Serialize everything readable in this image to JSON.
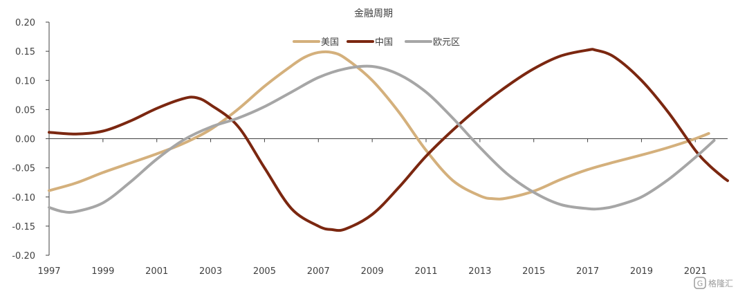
{
  "chart_data": {
    "type": "line",
    "title": "金融周期",
    "xlabel": "",
    "ylabel": "",
    "xlim": [
      1997,
      2022.2
    ],
    "ylim": [
      -0.2,
      0.2
    ],
    "x_ticks": [
      1997,
      1999,
      2001,
      2003,
      2005,
      2007,
      2009,
      2011,
      2013,
      2015,
      2017,
      2019,
      2021
    ],
    "x_tick_labels": [
      "1997",
      "1999",
      "2001",
      "2003",
      "2005",
      "2007",
      "2009",
      "2011",
      "2013",
      "2015",
      "2017",
      "2019",
      "2021"
    ],
    "y_ticks": [
      0.2,
      0.15,
      0.1,
      0.05,
      0.0,
      -0.05,
      -0.1,
      -0.15,
      -0.2
    ],
    "y_tick_labels": [
      "0.20",
      "0.15",
      "0.10",
      "0.05",
      "0.00",
      "-0.05",
      "-0.10",
      "-0.15",
      "-0.20"
    ],
    "grid": false,
    "legend_position": "top-center",
    "series": [
      {
        "name": "美国",
        "color": "#d4b07c",
        "points": [
          [
            1997,
            -0.089
          ],
          [
            1998,
            -0.076
          ],
          [
            1999,
            -0.058
          ],
          [
            2000,
            -0.042
          ],
          [
            2001,
            -0.026
          ],
          [
            2002,
            -0.008
          ],
          [
            2003,
            0.016
          ],
          [
            2004,
            0.05
          ],
          [
            2005,
            0.09
          ],
          [
            2006,
            0.125
          ],
          [
            2006.5,
            0.14
          ],
          [
            2007,
            0.148
          ],
          [
            2007.5,
            0.148
          ],
          [
            2008,
            0.138
          ],
          [
            2009,
            0.1
          ],
          [
            2010,
            0.045
          ],
          [
            2011,
            -0.02
          ],
          [
            2012,
            -0.072
          ],
          [
            2013,
            -0.098
          ],
          [
            2013.5,
            -0.103
          ],
          [
            2014,
            -0.102
          ],
          [
            2015,
            -0.09
          ],
          [
            2016,
            -0.07
          ],
          [
            2017,
            -0.053
          ],
          [
            2018,
            -0.04
          ],
          [
            2019,
            -0.028
          ],
          [
            2020,
            -0.015
          ],
          [
            2021,
            0.0
          ],
          [
            2021.5,
            0.009
          ]
        ]
      },
      {
        "name": "中国",
        "color": "#7b2710",
        "points": [
          [
            1997,
            0.011
          ],
          [
            1998,
            0.008
          ],
          [
            1999,
            0.013
          ],
          [
            2000,
            0.03
          ],
          [
            2001,
            0.052
          ],
          [
            2002,
            0.069
          ],
          [
            2002.5,
            0.07
          ],
          [
            2003,
            0.058
          ],
          [
            2004,
            0.022
          ],
          [
            2005,
            -0.05
          ],
          [
            2006,
            -0.12
          ],
          [
            2007,
            -0.15
          ],
          [
            2007.5,
            -0.156
          ],
          [
            2008,
            -0.155
          ],
          [
            2009,
            -0.13
          ],
          [
            2010,
            -0.083
          ],
          [
            2011,
            -0.03
          ],
          [
            2012,
            0.015
          ],
          [
            2013,
            0.055
          ],
          [
            2014,
            0.09
          ],
          [
            2015,
            0.12
          ],
          [
            2016,
            0.142
          ],
          [
            2017,
            0.152
          ],
          [
            2017.3,
            0.152
          ],
          [
            2018,
            0.14
          ],
          [
            2019,
            0.1
          ],
          [
            2020,
            0.045
          ],
          [
            2021,
            -0.02
          ],
          [
            2021.5,
            -0.045
          ],
          [
            2022,
            -0.065
          ],
          [
            2022.2,
            -0.072
          ]
        ]
      },
      {
        "name": "欧元区",
        "color": "#a6a6a6",
        "points": [
          [
            1997,
            -0.118
          ],
          [
            1997.5,
            -0.125
          ],
          [
            1998,
            -0.125
          ],
          [
            1999,
            -0.11
          ],
          [
            2000,
            -0.075
          ],
          [
            2001,
            -0.035
          ],
          [
            2002,
            -0.002
          ],
          [
            2003,
            0.02
          ],
          [
            2004,
            0.035
          ],
          [
            2005,
            0.055
          ],
          [
            2006,
            0.08
          ],
          [
            2007,
            0.105
          ],
          [
            2008,
            0.12
          ],
          [
            2009,
            0.124
          ],
          [
            2010,
            0.11
          ],
          [
            2011,
            0.08
          ],
          [
            2012,
            0.035
          ],
          [
            2013,
            -0.015
          ],
          [
            2014,
            -0.06
          ],
          [
            2015,
            -0.092
          ],
          [
            2016,
            -0.113
          ],
          [
            2017,
            -0.12
          ],
          [
            2017.5,
            -0.12
          ],
          [
            2018,
            -0.116
          ],
          [
            2019,
            -0.1
          ],
          [
            2020,
            -0.07
          ],
          [
            2021,
            -0.032
          ],
          [
            2021.7,
            -0.003
          ]
        ]
      }
    ]
  },
  "watermark": {
    "text": "格隆汇"
  }
}
